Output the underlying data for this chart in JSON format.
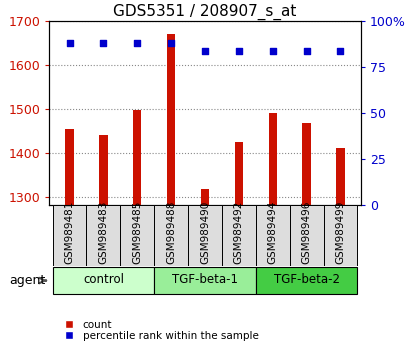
{
  "title": "GDS5351 / 208907_s_at",
  "samples": [
    "GSM989481",
    "GSM989483",
    "GSM989485",
    "GSM989488",
    "GSM989490",
    "GSM989492",
    "GSM989494",
    "GSM989496",
    "GSM989499"
  ],
  "counts": [
    1455,
    1440,
    1498,
    1672,
    1318,
    1425,
    1490,
    1468,
    1410
  ],
  "percentiles": [
    88,
    88,
    88,
    88,
    84,
    84,
    84,
    84,
    84
  ],
  "ylim_left": [
    1280,
    1700
  ],
  "ylim_right": [
    0,
    100
  ],
  "yticks_left": [
    1300,
    1400,
    1500,
    1600,
    1700
  ],
  "yticks_right": [
    0,
    25,
    50,
    75,
    100
  ],
  "groups": [
    {
      "label": "control",
      "indices": [
        0,
        1,
        2
      ],
      "color": "#ccffcc"
    },
    {
      "label": "TGF-beta-1",
      "indices": [
        3,
        4,
        5
      ],
      "color": "#99ee99"
    },
    {
      "label": "TGF-beta-2",
      "indices": [
        6,
        7,
        8
      ],
      "color": "#44cc44"
    }
  ],
  "bar_color": "#cc1100",
  "dot_color": "#0000cc",
  "bar_width": 0.25,
  "grid_color": "#888888",
  "background_color": "#ffffff",
  "left_label_color": "#cc1100",
  "right_label_color": "#0000cc",
  "agent_label": "agent",
  "legend_count": "count",
  "legend_percentile": "percentile rank within the sample",
  "label_box_color": "#dddddd",
  "label_fontsize": 7.5,
  "title_fontsize": 11
}
